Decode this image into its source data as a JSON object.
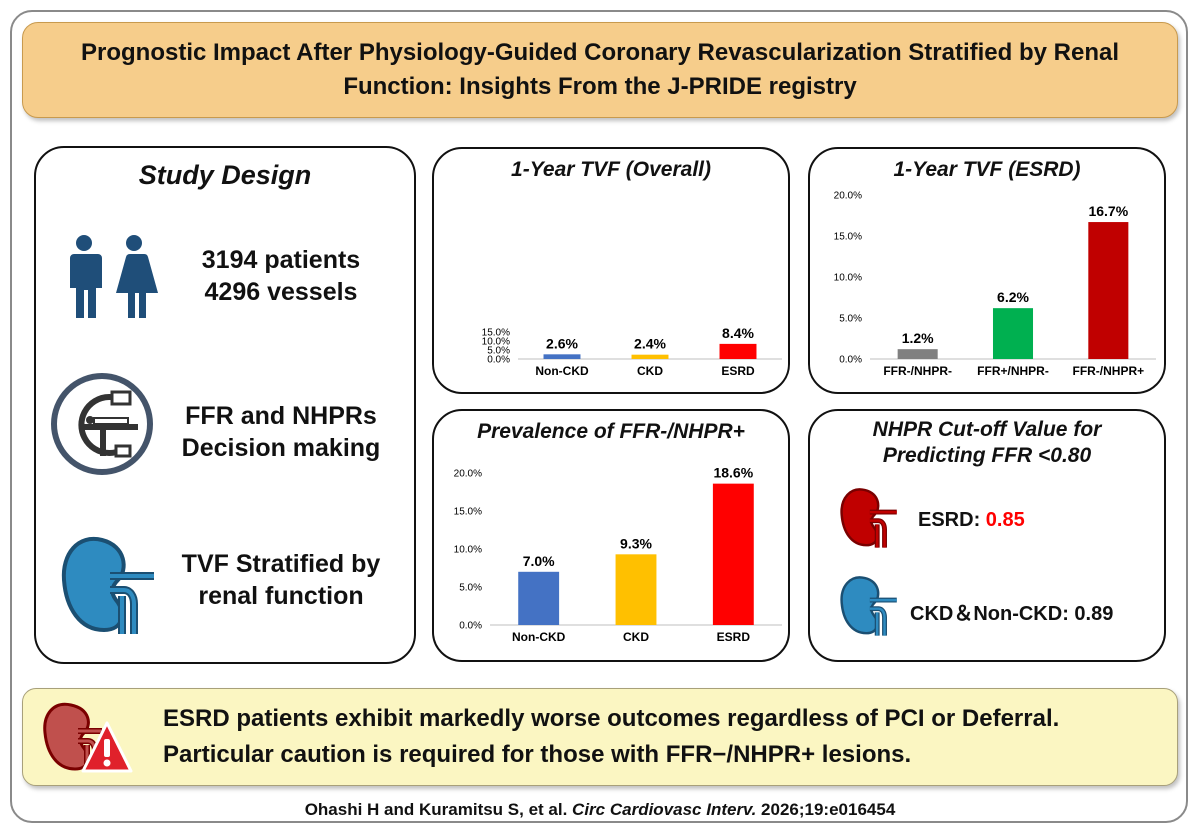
{
  "title": "Prognostic Impact After Physiology-Guided Coronary Revascularization Stratified by Renal Function: Insights From the J-PRIDE registry",
  "study_design": {
    "heading": "Study Design",
    "patients": "3194 patients",
    "vessels": "4296 vessels",
    "decision_line1": "FFR and NHPRs",
    "decision_line2": "Decision making",
    "tvf_line1": "TVF Stratified by",
    "tvf_line2": "renal function",
    "icons": [
      "people-icon",
      "cath-lab-icon",
      "kidney-icon"
    ]
  },
  "chart_data": [
    {
      "type": "bar",
      "title": "1-Year TVF (Overall)",
      "categories": [
        "Non-CKD",
        "CKD",
        "ESRD"
      ],
      "values": [
        2.6,
        2.4,
        8.4
      ],
      "value_labels": [
        "2.6%",
        "2.4%",
        "8.4%"
      ],
      "colors": [
        "#4472c4",
        "#ffc000",
        "#ff0000"
      ],
      "ylim": [
        0,
        15
      ],
      "yticks": [
        "0.0%",
        "5.0%",
        "10.0%",
        "15.0%"
      ],
      "ytick_values": [
        0,
        5,
        10,
        15
      ],
      "grid": false
    },
    {
      "type": "bar",
      "title": "1-Year TVF (ESRD)",
      "categories": [
        "FFR-/NHPR-",
        "FFR+/NHPR-",
        "FFR-/NHPR+"
      ],
      "values": [
        1.2,
        6.2,
        16.7
      ],
      "value_labels": [
        "1.2%",
        "6.2%",
        "16.7%"
      ],
      "colors": [
        "#808080",
        "#00b050",
        "#c00000"
      ],
      "ylim": [
        0,
        20
      ],
      "yticks": [
        "0.0%",
        "5.0%",
        "10.0%",
        "15.0%",
        "20.0%"
      ],
      "ytick_values": [
        0,
        5,
        10,
        15,
        20
      ],
      "grid": false
    },
    {
      "type": "bar",
      "title": "Prevalence of FFR-/NHPR+",
      "categories": [
        "Non-CKD",
        "CKD",
        "ESRD"
      ],
      "values": [
        7.0,
        9.3,
        18.6
      ],
      "value_labels": [
        "7.0%",
        "9.3%",
        "18.6%"
      ],
      "colors": [
        "#4472c4",
        "#ffc000",
        "#ff0000"
      ],
      "ylim": [
        0,
        20
      ],
      "yticks": [
        "0.0%",
        "5.0%",
        "10.0%",
        "15.0%",
        "20.0%"
      ],
      "ytick_values": [
        0,
        5,
        10,
        15,
        20
      ],
      "grid": false
    }
  ],
  "cutoff": {
    "title_line1": "NHPR Cut-off Value for",
    "title_line2": "Predicting FFR <0.80",
    "esrd_label": "ESRD: ",
    "esrd_value": "0.85",
    "esrd_color": "#ff0000",
    "ckd_label": "CKD＆Non-CKD: 0.89",
    "kidney_colors": [
      "#c00000",
      "#2e8bc0"
    ]
  },
  "conclusion": {
    "line1": "ESRD patients exhibit markedly worse outcomes regardless of PCI or Deferral.",
    "line2": "Particular caution is required for those with FFR−/NHPR+ lesions.",
    "icon": "kidney-warning-icon"
  },
  "citation": {
    "authors": "Ohashi H and Kuramitsu S, et al. ",
    "journal": "Circ Cardiovasc Interv.",
    "ref": " 2026;19:e016454"
  },
  "colors": {
    "title_bg": "#f6cd8b",
    "banner_bg": "#fbf6c2"
  }
}
